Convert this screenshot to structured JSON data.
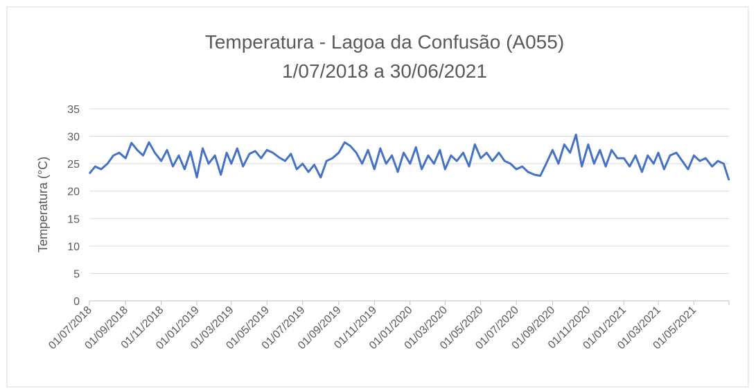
{
  "chart_data": {
    "type": "line",
    "title": "Temperatura - Lagoa da Confusão (A055)",
    "subtitle": "1/07/2018 a 30/06/2021",
    "y_label": "Temperatura (°C)",
    "ylim": [
      0,
      35
    ],
    "yticks": [
      0,
      5,
      10,
      15,
      20,
      25,
      30,
      35
    ],
    "grid": true,
    "xlim": [
      "01/07/2018",
      "30/06/2021"
    ],
    "xticks": [
      "01/07/2018",
      "01/09/2018",
      "01/11/2018",
      "01/01/2019",
      "01/03/2019",
      "01/05/2019",
      "01/07/2019",
      "01/09/2019",
      "01/11/2019",
      "01/01/2020",
      "01/03/2020",
      "01/05/2020",
      "01/07/2020",
      "01/09/2020",
      "01/11/2020",
      "01/01/2021",
      "01/03/2021",
      "01/05/2021"
    ],
    "x": [
      "01/07/2018",
      "11/07/2018",
      "21/07/2018",
      "01/08/2018",
      "11/08/2018",
      "21/08/2018",
      "01/09/2018",
      "11/09/2018",
      "21/09/2018",
      "01/10/2018",
      "11/10/2018",
      "21/10/2018",
      "01/11/2018",
      "11/11/2018",
      "21/11/2018",
      "01/12/2018",
      "11/12/2018",
      "21/12/2018",
      "01/01/2019",
      "11/01/2019",
      "21/01/2019",
      "01/02/2019",
      "11/02/2019",
      "21/02/2019",
      "01/03/2019",
      "11/03/2019",
      "21/03/2019",
      "01/04/2019",
      "11/04/2019",
      "21/04/2019",
      "01/05/2019",
      "11/05/2019",
      "21/05/2019",
      "01/06/2019",
      "11/06/2019",
      "21/06/2019",
      "01/07/2019",
      "11/07/2019",
      "21/07/2019",
      "01/08/2019",
      "11/08/2019",
      "21/08/2019",
      "01/09/2019",
      "11/09/2019",
      "21/09/2019",
      "01/10/2019",
      "11/10/2019",
      "21/10/2019",
      "01/11/2019",
      "11/11/2019",
      "21/11/2019",
      "01/12/2019",
      "11/12/2019",
      "21/12/2019",
      "01/01/2020",
      "11/01/2020",
      "21/01/2020",
      "01/02/2020",
      "11/02/2020",
      "21/02/2020",
      "01/03/2020",
      "11/03/2020",
      "21/03/2020",
      "01/04/2020",
      "11/04/2020",
      "21/04/2020",
      "01/05/2020",
      "11/05/2020",
      "21/05/2020",
      "01/06/2020",
      "11/06/2020",
      "21/06/2020",
      "01/07/2020",
      "11/07/2020",
      "21/07/2020",
      "01/08/2020",
      "11/08/2020",
      "21/08/2020",
      "01/09/2020",
      "11/09/2020",
      "21/09/2020",
      "01/10/2020",
      "11/10/2020",
      "21/10/2020",
      "01/11/2020",
      "11/11/2020",
      "21/11/2020",
      "01/12/2020",
      "11/12/2020",
      "21/12/2020",
      "01/01/2021",
      "11/01/2021",
      "21/01/2021",
      "01/02/2021",
      "11/02/2021",
      "21/02/2021",
      "01/03/2021",
      "11/03/2021",
      "21/03/2021",
      "01/04/2021",
      "11/04/2021",
      "21/04/2021",
      "01/05/2021",
      "11/05/2021",
      "21/05/2021",
      "01/06/2021",
      "11/06/2021",
      "21/06/2021",
      "30/06/2021"
    ],
    "series": [
      {
        "name": "Temperatura",
        "color": "#4472c4",
        "values": [
          23.2,
          24.5,
          24.0,
          25.0,
          26.5,
          27.0,
          26.0,
          28.8,
          27.5,
          26.5,
          28.9,
          27.0,
          25.5,
          27.5,
          24.5,
          26.5,
          24.0,
          27.2,
          22.5,
          27.8,
          25.0,
          26.5,
          23.0,
          27.0,
          25.0,
          27.8,
          24.5,
          26.8,
          27.3,
          26.0,
          27.5,
          27.0,
          26.2,
          25.5,
          26.8,
          24.0,
          25.0,
          23.5,
          24.8,
          22.5,
          25.5,
          26.0,
          27.0,
          28.9,
          28.2,
          27.0,
          25.0,
          27.5,
          24.0,
          27.8,
          25.0,
          26.5,
          23.5,
          27.0,
          25.0,
          28.0,
          24.0,
          26.5,
          25.0,
          27.5,
          24.0,
          26.5,
          25.5,
          27.0,
          24.5,
          28.5,
          26.0,
          27.0,
          25.5,
          27.0,
          25.5,
          25.0,
          24.0,
          24.5,
          23.5,
          23.0,
          22.8,
          25.0,
          27.5,
          25.0,
          28.5,
          27.0,
          30.3,
          24.5,
          28.5,
          25.0,
          27.5,
          24.5,
          27.5,
          26.0,
          26.0,
          24.5,
          26.5,
          23.5,
          26.5,
          25.0,
          27.0,
          24.0,
          26.5,
          27.0,
          25.5,
          24.0,
          26.5,
          25.5,
          26.0,
          24.5,
          25.5,
          25.0,
          22.0
        ]
      }
    ]
  }
}
